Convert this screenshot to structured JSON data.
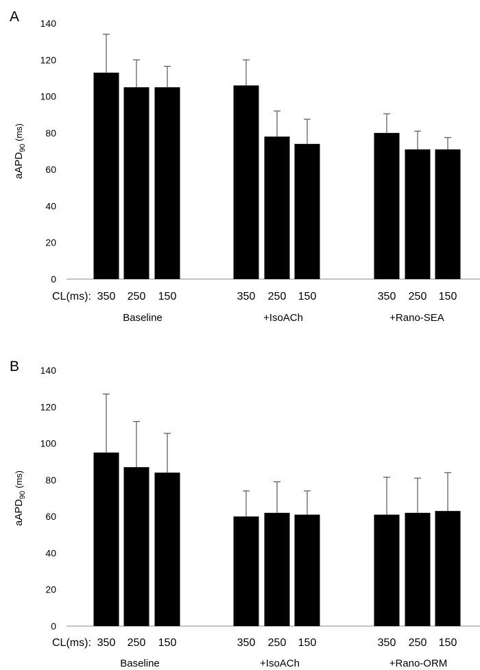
{
  "chart_data": [
    {
      "panel_label": "A",
      "type": "bar",
      "ylabel_main": "aAPD",
      "ylabel_sub": "90",
      "ylabel_unit": " (ms)",
      "ylim": [
        0,
        140
      ],
      "yticks": [
        "0",
        "20",
        "40",
        "60",
        "80",
        "100",
        "120",
        "140"
      ],
      "xrow_label": "CL(ms):",
      "groups": [
        {
          "name": "Baseline",
          "categories": [
            "350",
            "250",
            "150"
          ],
          "values": [
            113,
            105,
            105
          ],
          "errors": [
            21,
            15,
            11.5
          ]
        },
        {
          "name": "+IsoACh",
          "categories": [
            "350",
            "250",
            "150"
          ],
          "values": [
            106,
            78,
            74
          ],
          "errors": [
            14,
            14,
            13.5
          ]
        },
        {
          "name": "+Rano-SEA",
          "categories": [
            "350",
            "250",
            "150"
          ],
          "values": [
            80,
            71,
            71
          ],
          "errors": [
            10.5,
            10,
            6.5
          ]
        }
      ]
    },
    {
      "panel_label": "B",
      "type": "bar",
      "ylabel_main": "aAPD",
      "ylabel_sub": "90",
      "ylabel_unit": " (ms)",
      "ylim": [
        0,
        140
      ],
      "yticks": [
        "0",
        "20",
        "40",
        "60",
        "80",
        "100",
        "120",
        "140"
      ],
      "xrow_label": "CL(ms):",
      "groups": [
        {
          "name": "Baseline",
          "categories": [
            "350",
            "250",
            "150"
          ],
          "values": [
            95,
            87,
            84
          ],
          "errors": [
            32,
            25,
            21.5
          ]
        },
        {
          "name": "+IsoACh",
          "categories": [
            "350",
            "250",
            "150"
          ],
          "values": [
            60,
            62,
            61
          ],
          "errors": [
            14,
            17,
            13
          ]
        },
        {
          "name": "+Rano-ORM",
          "categories": [
            "350",
            "250",
            "150"
          ],
          "values": [
            61,
            62,
            63
          ],
          "errors": [
            20.5,
            19,
            21
          ]
        }
      ]
    }
  ],
  "colors": {
    "bar": "#000000",
    "axis": "#888888",
    "error": "#555555"
  }
}
